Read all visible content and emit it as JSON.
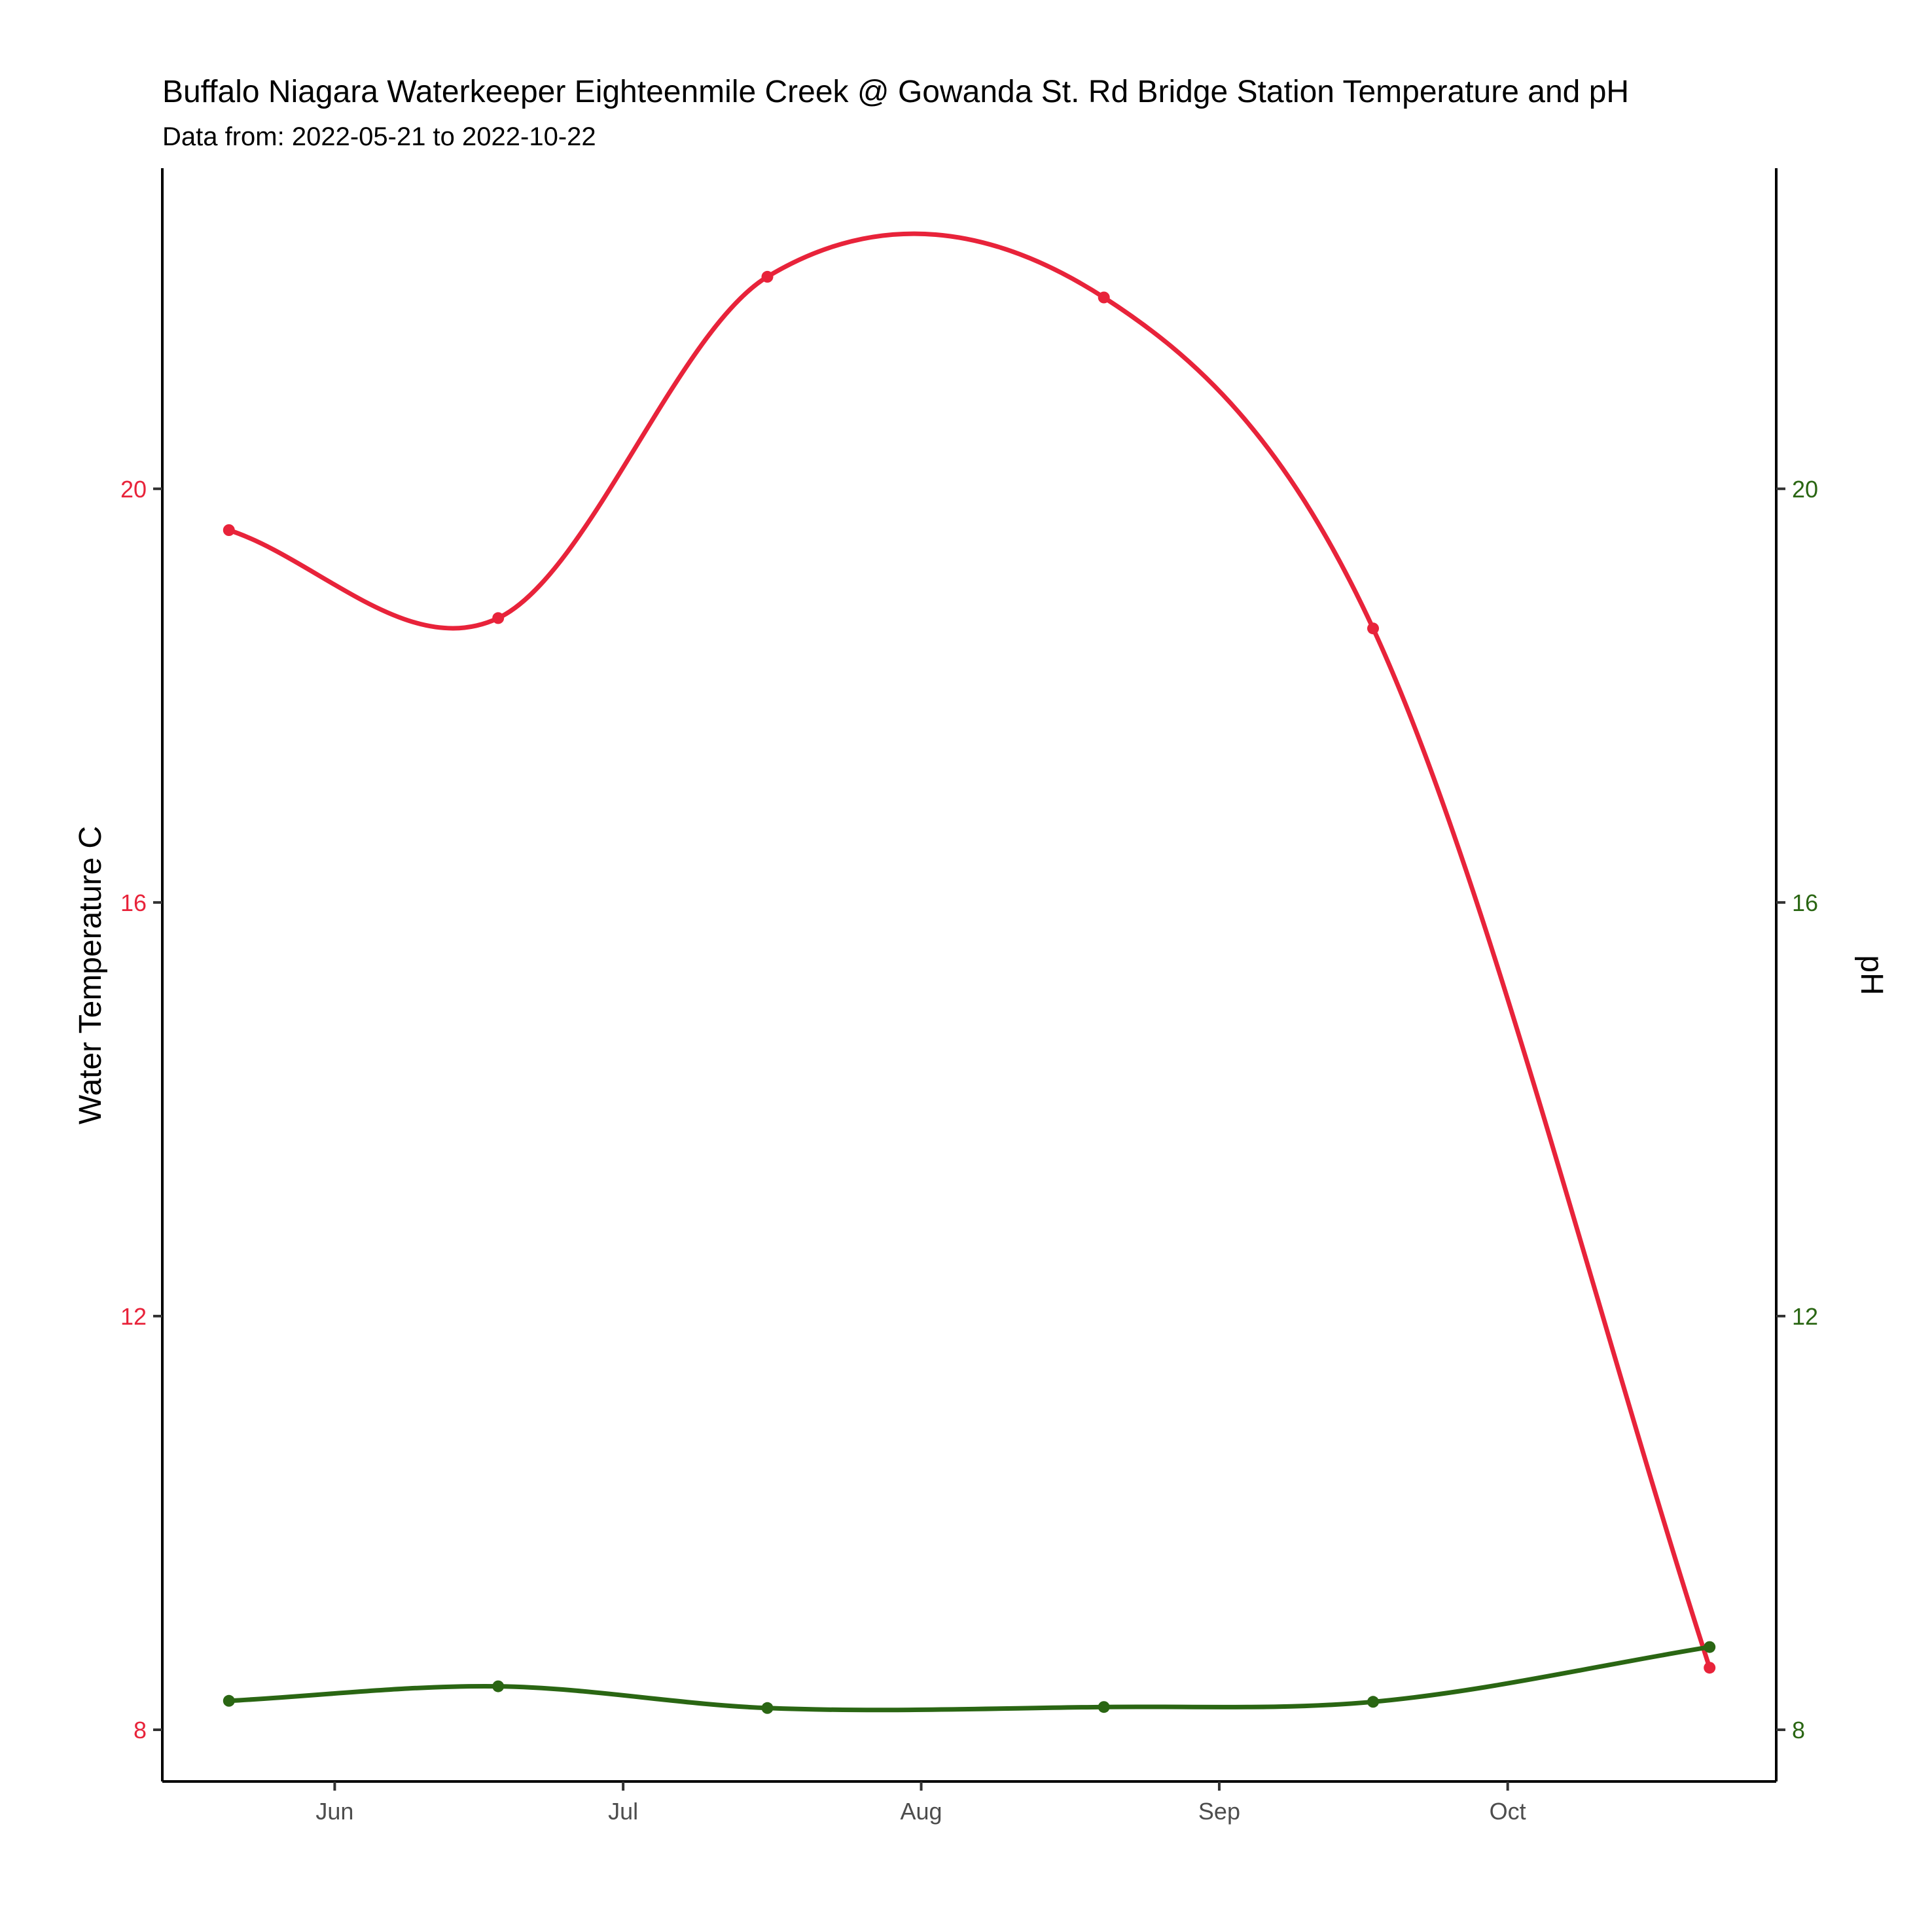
{
  "chart_data": {
    "type": "line",
    "title": "Buffalo Niagara Waterkeeper Eighteenmile Creek @ Gowanda St. Rd Bridge Station Temperature and pH",
    "subtitle": "Data from: 2022-05-21 to 2022-10-22",
    "ylabel_left": "Water Temperature C",
    "ylabel_right": "pH",
    "x_ticks": [
      {
        "date": "2022-06-01",
        "label": "Jun"
      },
      {
        "date": "2022-07-01",
        "label": "Jul"
      },
      {
        "date": "2022-08-01",
        "label": "Aug"
      },
      {
        "date": "2022-09-01",
        "label": "Sep"
      },
      {
        "date": "2022-10-01",
        "label": "Oct"
      }
    ],
    "xlim": [
      "2022-05-21",
      "2022-10-22"
    ],
    "y_ticks": [
      8,
      12,
      16,
      20
    ],
    "ylim": [
      7.5,
      23.1
    ],
    "grid": false,
    "legend": "none",
    "series": [
      {
        "name": "Water Temperature C",
        "axis": "left",
        "color": "#E8233A",
        "x": [
          "2022-05-21",
          "2022-06-18",
          "2022-07-16",
          "2022-08-20",
          "2022-09-17",
          "2022-10-22"
        ],
        "y": [
          19.6,
          18.75,
          22.05,
          21.85,
          18.65,
          8.6
        ]
      },
      {
        "name": "pH",
        "axis": "right",
        "color": "#2A6613",
        "x": [
          "2022-05-21",
          "2022-06-18",
          "2022-07-16",
          "2022-08-20",
          "2022-09-17",
          "2022-10-22"
        ],
        "y": [
          8.28,
          8.42,
          8.21,
          8.22,
          8.27,
          8.8
        ]
      }
    ]
  }
}
